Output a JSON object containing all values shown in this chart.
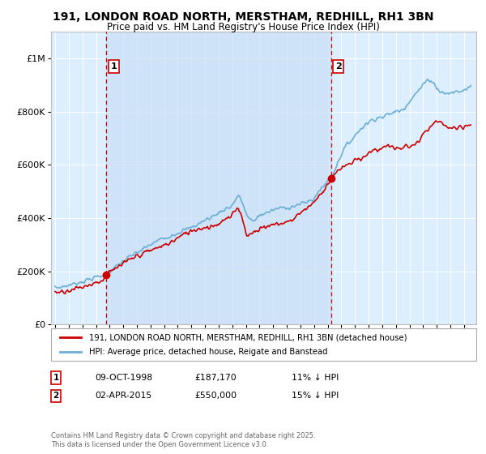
{
  "title": "191, LONDON ROAD NORTH, MERSTHAM, REDHILL, RH1 3BN",
  "subtitle": "Price paid vs. HM Land Registry's House Price Index (HPI)",
  "legend_line1": "191, LONDON ROAD NORTH, MERSTHAM, REDHILL, RH1 3BN (detached house)",
  "legend_line2": "HPI: Average price, detached house, Reigate and Banstead",
  "sale1_date": "09-OCT-1998",
  "sale1_price": "£187,170",
  "sale1_hpi": "11% ↓ HPI",
  "sale2_date": "02-APR-2015",
  "sale2_price": "£550,000",
  "sale2_hpi": "15% ↓ HPI",
  "footer": "Contains HM Land Registry data © Crown copyright and database right 2025.\nThis data is licensed under the Open Government Licence v3.0.",
  "hpi_color": "#6baed6",
  "price_color": "#cc0000",
  "sale_marker_color": "#cc0000",
  "plot_bg_color": "#ddeeff",
  "highlight_color": "#c8d8f0",
  "ylim": [
    0,
    1100000
  ],
  "yticks": [
    0,
    200000,
    400000,
    600000,
    800000,
    1000000
  ],
  "ytick_labels": [
    "£0",
    "£200K",
    "£400K",
    "£600K",
    "£800K",
    "£1M"
  ],
  "sale1_x": 1998.77,
  "sale1_y": 187170,
  "sale2_x": 2015.25,
  "sale2_y": 550000,
  "xmin": 1994.7,
  "xmax": 2025.9
}
